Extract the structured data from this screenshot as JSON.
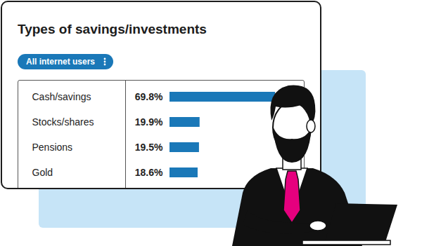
{
  "chart_data": {
    "type": "bar",
    "title": "Types of savings/investments",
    "annotations": [
      "All internet users"
    ],
    "categories": [
      "Cash/savings",
      "Stocks/shares",
      "Pensions",
      "Gold"
    ],
    "values": [
      69.8,
      19.9,
      19.5,
      18.6
    ],
    "value_labels": [
      "69.8%",
      "19.9%",
      "19.5%",
      "18.6%"
    ],
    "color": "#1a78b8",
    "orientation": "horizontal",
    "data_labels": true,
    "tick_labels": false
  }
}
